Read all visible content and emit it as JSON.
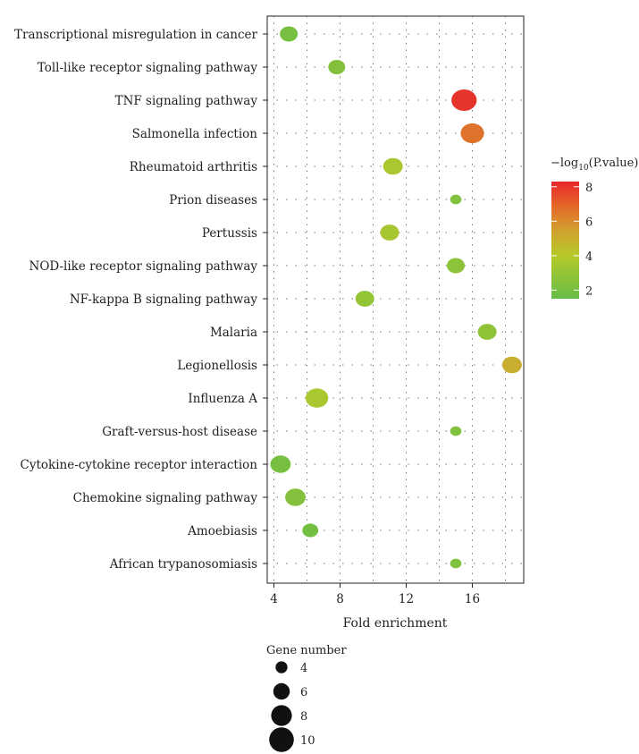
{
  "chart_data": {
    "type": "scatter",
    "title": "",
    "xlabel": "Fold enrichment",
    "ylabel": "",
    "xlim": [
      3.5,
      19.5
    ],
    "xticks": [
      4,
      8,
      12,
      16
    ],
    "grid": true,
    "categories": [
      "Transcriptional misregulation in cancer",
      "Toll-like receptor signaling pathway",
      "TNF signaling pathway",
      "Salmonella infection",
      "Rheumatoid arthritis",
      "Prion diseases",
      "Pertussis",
      "NOD-like receptor signaling pathway",
      "NF-kappa B signaling pathway",
      "Malaria",
      "Legionellosis",
      "Influenza A",
      "Graft-versus-host disease",
      "Cytokine-cytokine receptor interaction",
      "Chemokine signaling pathway",
      "Amoebiasis",
      "African trypanosomiasis"
    ],
    "fold_enrichment": [
      4.9,
      7.8,
      15.5,
      16.0,
      11.2,
      15.0,
      11.0,
      15.0,
      9.5,
      16.9,
      18.4,
      6.6,
      15.0,
      4.4,
      5.3,
      6.2,
      15.0
    ],
    "gene_number": [
      5,
      4.5,
      10,
      8.5,
      6,
      2,
      5.5,
      5,
      5.5,
      5.5,
      6,
      8,
      2,
      6.5,
      6.5,
      4,
      2
    ],
    "neg_log10_pvalue": [
      2.0,
      2.4,
      8.0,
      6.6,
      3.6,
      2.3,
      3.5,
      2.7,
      2.9,
      2.8,
      5.0,
      3.6,
      2.3,
      2.0,
      2.4,
      1.9,
      2.3
    ],
    "color_legend": {
      "title": "−log",
      "title_sub": "10",
      "title_suffix": "(P.value)",
      "ticks": [
        2,
        4,
        6,
        8
      ],
      "range": [
        1.5,
        8.3
      ],
      "stops": [
        {
          "value": 1.5,
          "color": "#66bd46"
        },
        {
          "value": 4.0,
          "color": "#b6c92a"
        },
        {
          "value": 5.5,
          "color": "#d2a02e"
        },
        {
          "value": 7.0,
          "color": "#e5632a"
        },
        {
          "value": 8.3,
          "color": "#e8262b"
        }
      ]
    },
    "size_legend": {
      "title": "Gene number",
      "values": [
        4,
        6,
        8,
        10
      ]
    }
  }
}
